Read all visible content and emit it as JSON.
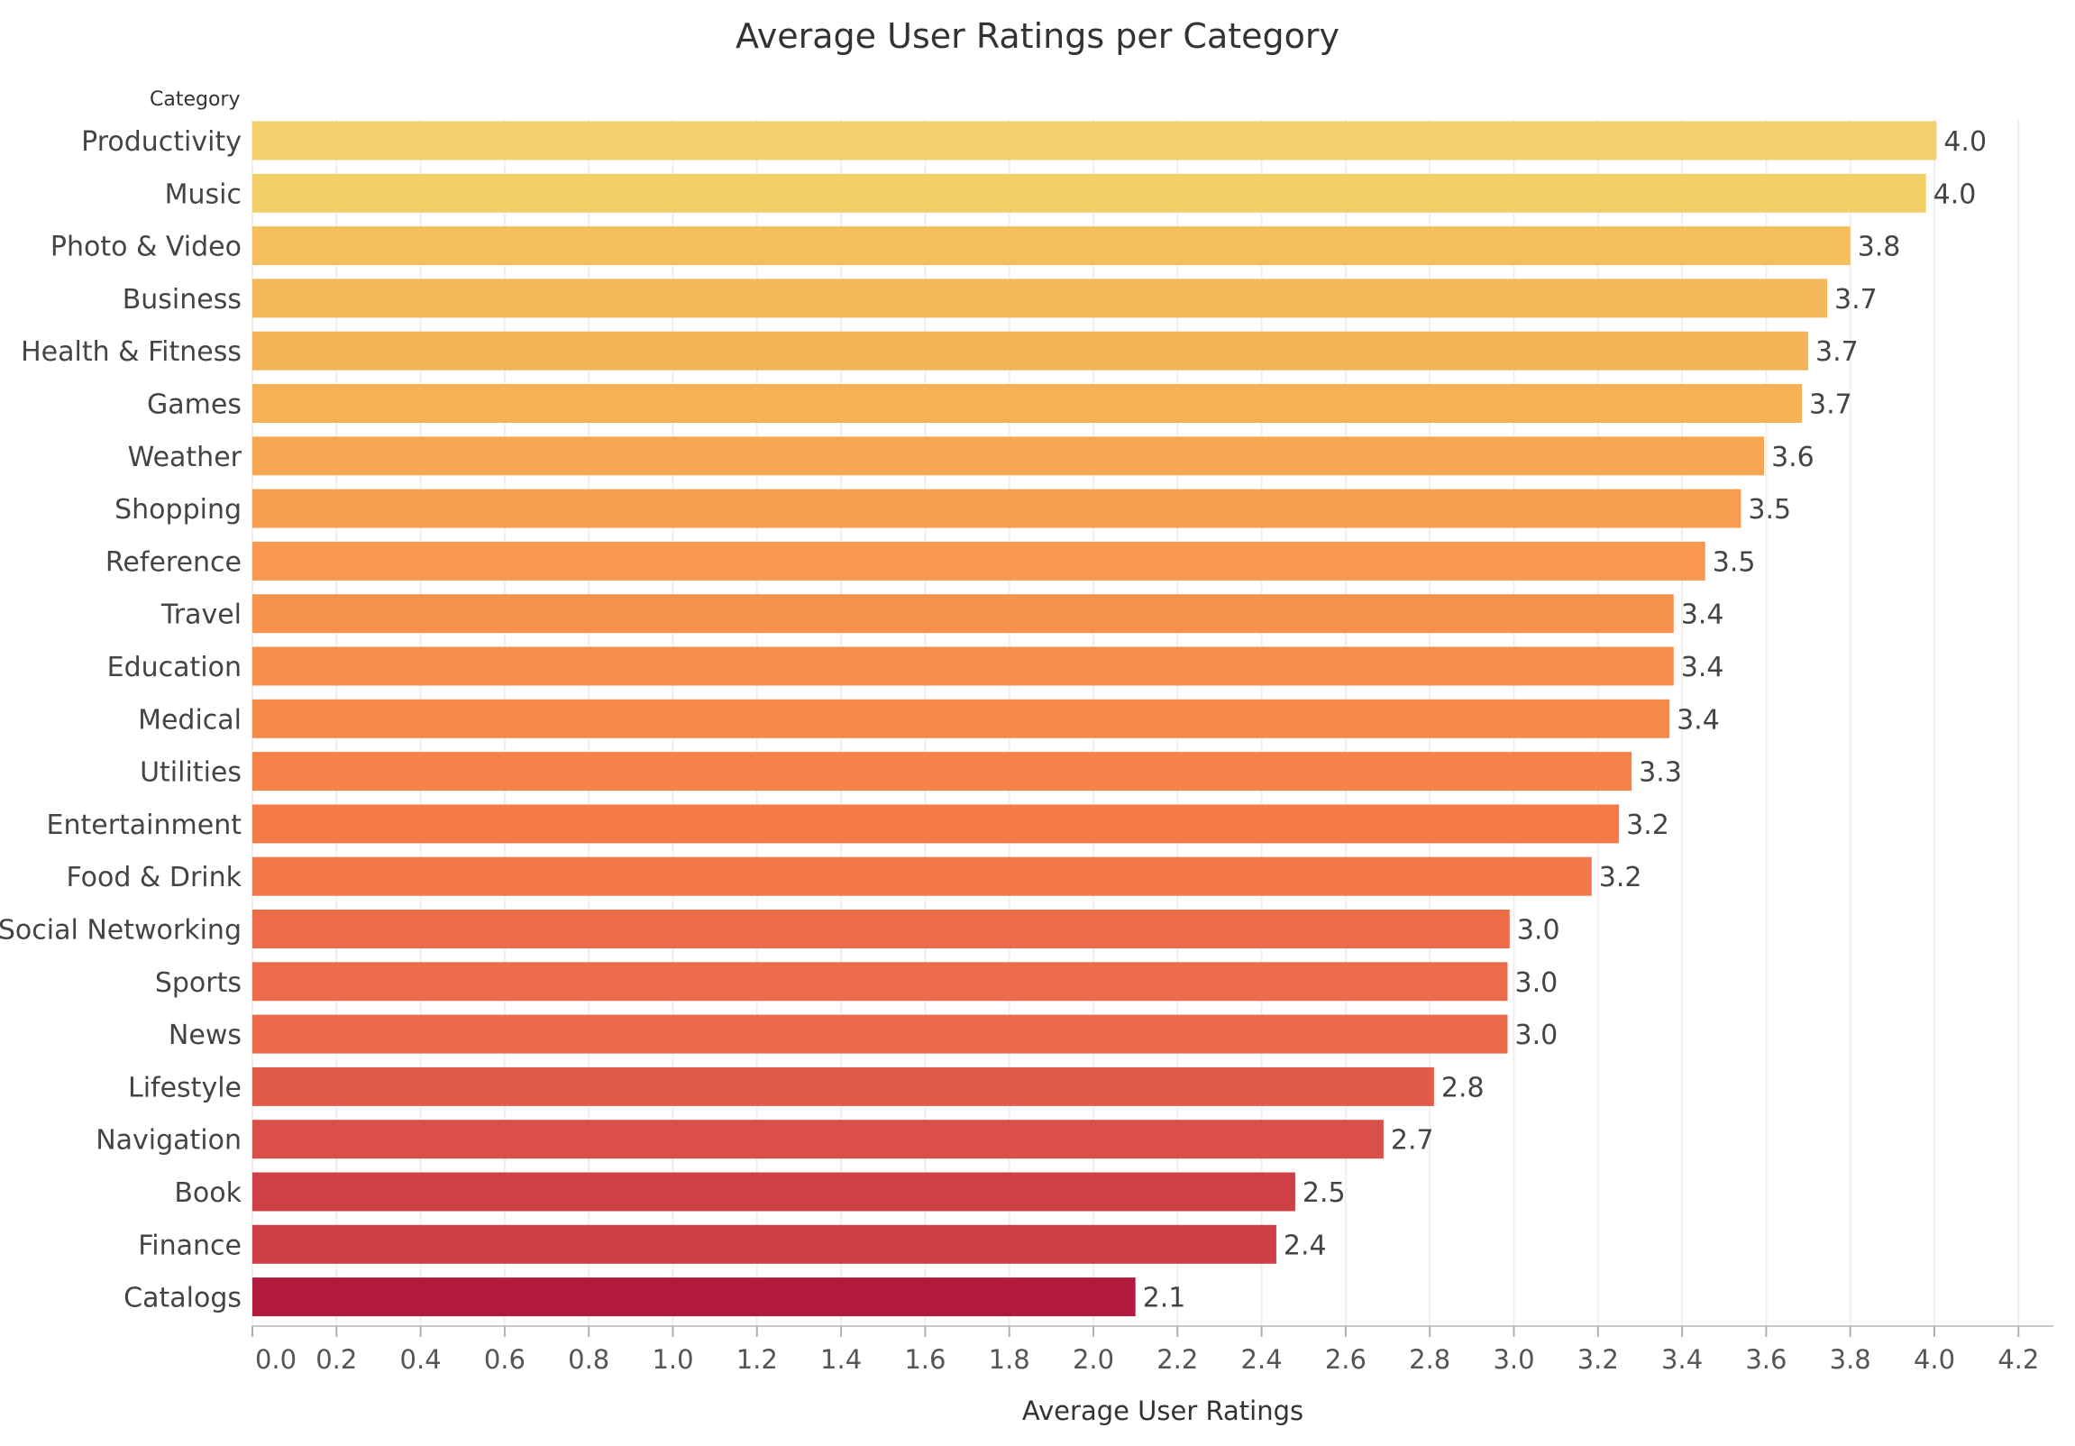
{
  "chart_data": {
    "type": "bar",
    "orientation": "horizontal",
    "title": "Average User Ratings per Category",
    "xlabel": "Average User Ratings",
    "ylabel": "Category",
    "xlim": [
      0,
      4.25
    ],
    "x_ticks": [
      "0.0",
      "0.2",
      "0.4",
      "0.6",
      "0.8",
      "1.0",
      "1.2",
      "1.4",
      "1.6",
      "1.8",
      "2.0",
      "2.2",
      "2.4",
      "2.6",
      "2.8",
      "3.0",
      "3.2",
      "3.4",
      "3.6",
      "3.8",
      "4.0",
      "4.2"
    ],
    "grid": true,
    "legend": "none",
    "categories": [
      "Productivity",
      "Music",
      "Photo & Video",
      "Business",
      "Health & Fitness",
      "Games",
      "Weather",
      "Shopping",
      "Reference",
      "Travel",
      "Education",
      "Medical",
      "Utilities",
      "Entertainment",
      "Food & Drink",
      "Social Networking",
      "Sports",
      "News",
      "Lifestyle",
      "Navigation",
      "Book",
      "Finance",
      "Catalogs"
    ],
    "values": [
      4.005,
      3.98,
      3.8,
      3.745,
      3.7,
      3.685,
      3.595,
      3.54,
      3.455,
      3.38,
      3.38,
      3.37,
      3.28,
      3.25,
      3.185,
      2.99,
      2.985,
      2.985,
      2.81,
      2.69,
      2.48,
      2.435,
      2.1
    ],
    "value_labels": [
      "4.0",
      "4.0",
      "3.8",
      "3.7",
      "3.7",
      "3.7",
      "3.6",
      "3.5",
      "3.5",
      "3.4",
      "3.4",
      "3.4",
      "3.3",
      "3.2",
      "3.2",
      "3.0",
      "3.0",
      "3.0",
      "2.8",
      "2.7",
      "2.5",
      "2.4",
      "2.1"
    ],
    "colors": [
      "#F2D06B",
      "#F2CE69",
      "#F4BE5D",
      "#F4B85A",
      "#F5B358",
      "#F6B055",
      "#F7A752",
      "#F89E50",
      "#F8994F",
      "#F7924C",
      "#F78D4B",
      "#F7894B",
      "#F68149",
      "#F57B48",
      "#F37849",
      "#EC6C49",
      "#EC6B4A",
      "#EA6A4A",
      "#E25B49",
      "#DA4F48",
      "#CE4045",
      "#CD3E45",
      "#B11A3C"
    ]
  }
}
